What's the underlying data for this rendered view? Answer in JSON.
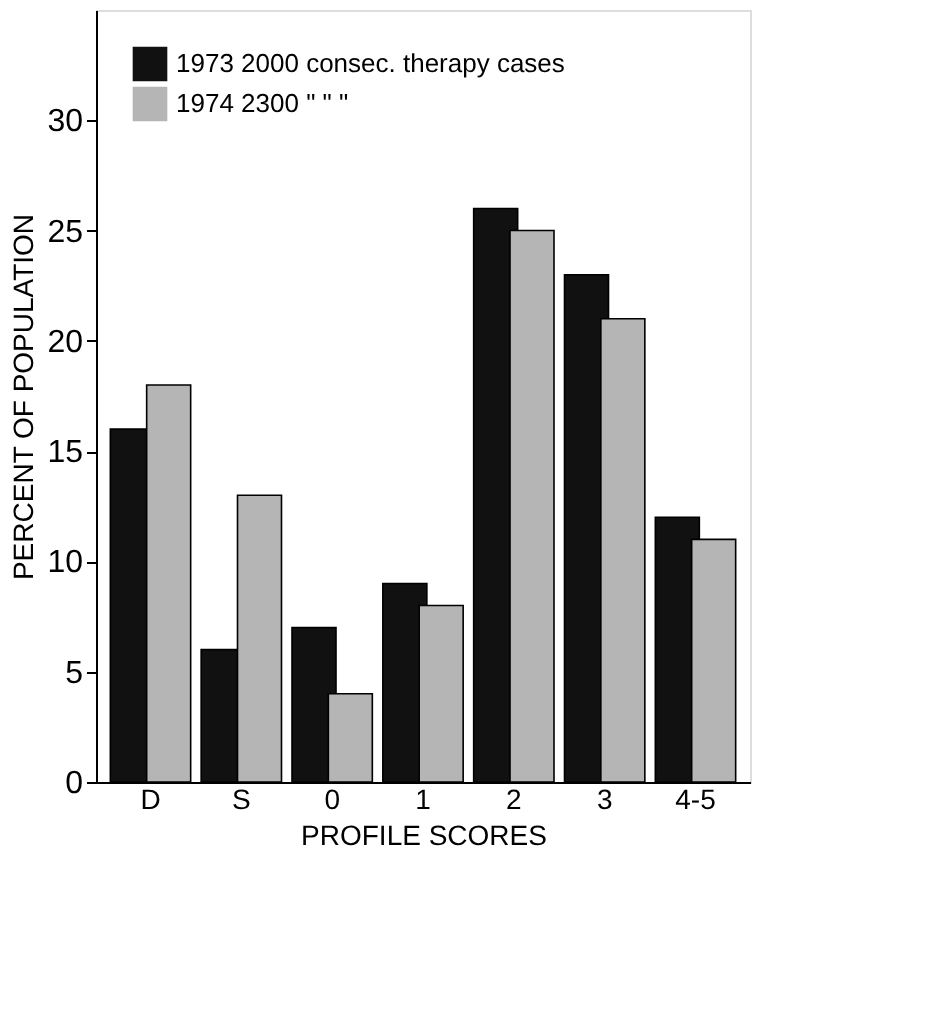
{
  "chart_data": {
    "type": "bar",
    "xlabel": "PROFILE SCORES",
    "ylabel": "PERCENT OF POPULATION",
    "categories": [
      "D",
      "S",
      "0",
      "1",
      "2",
      "3",
      "4-5"
    ],
    "series": [
      {
        "name": "1973 2000 consec. therapy cases",
        "color": "#111111",
        "values": [
          16,
          6,
          7,
          9,
          26,
          23,
          12
        ]
      },
      {
        "name": "1974 2300 \"  \"  \"",
        "color": "#b5b5b5",
        "values": [
          18,
          13,
          4,
          8,
          25,
          21,
          11
        ]
      }
    ],
    "ylim": [
      0,
      35
    ],
    "yticks": [
      0,
      5,
      10,
      15,
      20,
      25,
      30
    ],
    "grid": false,
    "legend": "top left"
  }
}
